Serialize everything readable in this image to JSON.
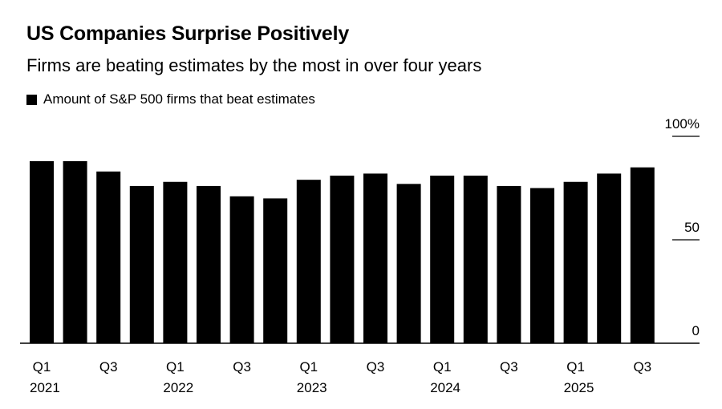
{
  "chart_data": {
    "type": "bar",
    "title": "US Companies Surprise Positively",
    "subtitle": "Firms are beating estimates by the most in over four years",
    "legend": [
      {
        "name": "Amount of S&P 500 firms that beat estimates",
        "color": "#000000"
      }
    ],
    "legend_position": "top-left",
    "categories": [
      "Q1 2021",
      "Q2 2021",
      "Q3 2021",
      "Q4 2021",
      "Q1 2022",
      "Q2 2022",
      "Q3 2022",
      "Q4 2022",
      "Q1 2023",
      "Q2 2023",
      "Q3 2023",
      "Q4 2023",
      "Q1 2024",
      "Q2 2024",
      "Q3 2024",
      "Q4 2024",
      "Q1 2025",
      "Q2 2025",
      "Q3 2025"
    ],
    "series": [
      {
        "name": "Amount of S&P 500 firms that beat estimates",
        "values": [
          88,
          88,
          83,
          76,
          78,
          76,
          71,
          70,
          79,
          81,
          82,
          77,
          81,
          81,
          76,
          75,
          78,
          82,
          85
        ]
      }
    ],
    "x_tick_labels": [
      {
        "index": 0,
        "quarter": "Q1",
        "year": "2021"
      },
      {
        "index": 2,
        "quarter": "Q3",
        "year": ""
      },
      {
        "index": 4,
        "quarter": "Q1",
        "year": "2022"
      },
      {
        "index": 6,
        "quarter": "Q3",
        "year": ""
      },
      {
        "index": 8,
        "quarter": "Q1",
        "year": "2023"
      },
      {
        "index": 10,
        "quarter": "Q3",
        "year": ""
      },
      {
        "index": 12,
        "quarter": "Q1",
        "year": "2024"
      },
      {
        "index": 14,
        "quarter": "Q3",
        "year": ""
      },
      {
        "index": 16,
        "quarter": "Q1",
        "year": "2025"
      },
      {
        "index": 18,
        "quarter": "Q3",
        "year": ""
      }
    ],
    "y_ticks": [
      {
        "value": 100,
        "label": "100%"
      },
      {
        "value": 50,
        "label": "50"
      },
      {
        "value": 0,
        "label": "0"
      }
    ],
    "xlabel": "",
    "ylabel": "",
    "ylim": [
      0,
      100
    ],
    "y_axis_side": "right",
    "grid": false,
    "bar_color": "#000000"
  }
}
